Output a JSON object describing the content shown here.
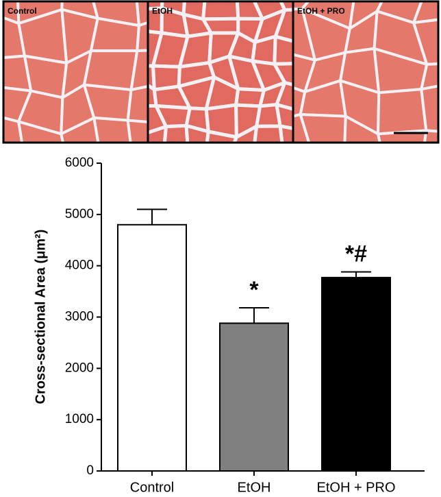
{
  "image_labels": [
    "Control",
    "EtOH",
    "EtOH + PRO"
  ],
  "chart_data": {
    "type": "bar",
    "y_label": "Cross-sectional Area (μm²)",
    "categories": [
      "Control",
      "EtOH",
      "EtOH + PRO"
    ],
    "values": [
      4800,
      2880,
      3770
    ],
    "errors": [
      300,
      300,
      110
    ],
    "colors": [
      "#ffffff",
      "#808080",
      "#000000"
    ],
    "annotations": [
      null,
      "*",
      "*#"
    ],
    "ylim": [
      0,
      6000
    ],
    "yticks": [
      0,
      1000,
      2000,
      3000,
      4000,
      5000,
      6000
    ]
  }
}
